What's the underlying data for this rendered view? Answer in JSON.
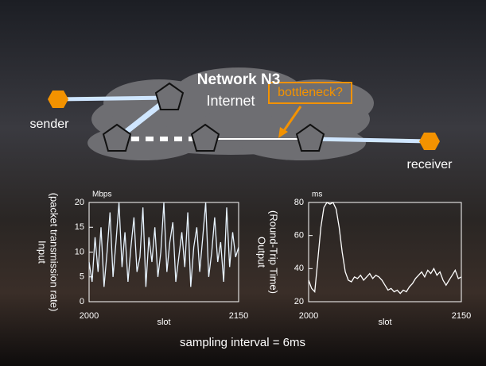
{
  "slide": {
    "title": "Network N3",
    "cloud_label": "Internet",
    "annotation": "bottleneck?",
    "sender": "sender",
    "receiver": "receiver",
    "caption": "sampling interval = 6ms"
  },
  "chart_data": [
    {
      "type": "line",
      "ylabel": [
        "Input",
        "(packet transmission rate)"
      ],
      "unit": "Mbps",
      "xlabel": "slot",
      "xlim": [
        2000,
        2150
      ],
      "xticks": [
        2000,
        2150
      ],
      "ylim": [
        0,
        20
      ],
      "yticks": [
        0,
        5,
        10,
        15,
        20
      ],
      "color": "#e8f4ff",
      "x": [
        2000,
        2003,
        2006,
        2009,
        2012,
        2015,
        2018,
        2021,
        2024,
        2027,
        2030,
        2033,
        2036,
        2039,
        2042,
        2045,
        2048,
        2051,
        2054,
        2057,
        2060,
        2063,
        2066,
        2069,
        2072,
        2075,
        2078,
        2081,
        2084,
        2087,
        2090,
        2093,
        2096,
        2099,
        2102,
        2105,
        2108,
        2111,
        2114,
        2117,
        2120,
        2123,
        2126,
        2129,
        2132,
        2135,
        2138,
        2141,
        2144,
        2147,
        2150
      ],
      "values": [
        8,
        4,
        13,
        6,
        15,
        3,
        10,
        18,
        5,
        12,
        20,
        7,
        14,
        4,
        11,
        17,
        6,
        9,
        19,
        3,
        13,
        8,
        15,
        5,
        10,
        20,
        6,
        12,
        16,
        4,
        9,
        14,
        7,
        18,
        3,
        11,
        15,
        6,
        13,
        20,
        5,
        10,
        17,
        8,
        12,
        4,
        19,
        7,
        14,
        9,
        11
      ]
    },
    {
      "type": "line",
      "ylabel": [
        "Output",
        "(Round-Trip Time)"
      ],
      "unit": "ms",
      "xlabel": "slot",
      "xlim": [
        2000,
        2150
      ],
      "xticks": [
        2000,
        2150
      ],
      "ylim": [
        20,
        80
      ],
      "yticks": [
        20,
        40,
        60,
        80
      ],
      "color": "#ffffff",
      "x": [
        2000,
        2003,
        2006,
        2009,
        2012,
        2015,
        2018,
        2021,
        2024,
        2027,
        2030,
        2033,
        2036,
        2039,
        2042,
        2045,
        2048,
        2051,
        2054,
        2057,
        2060,
        2063,
        2066,
        2069,
        2072,
        2075,
        2078,
        2081,
        2084,
        2087,
        2090,
        2093,
        2096,
        2099,
        2102,
        2105,
        2108,
        2111,
        2114,
        2117,
        2120,
        2123,
        2126,
        2129,
        2132,
        2135,
        2138,
        2141,
        2144,
        2147,
        2150
      ],
      "values": [
        33,
        28,
        26,
        45,
        65,
        77,
        80,
        79,
        80,
        76,
        65,
        50,
        38,
        33,
        32,
        35,
        34,
        36,
        33,
        35,
        37,
        34,
        36,
        35,
        33,
        30,
        27,
        28,
        26,
        27,
        25,
        27,
        26,
        29,
        31,
        34,
        36,
        38,
        35,
        39,
        37,
        40,
        36,
        38,
        33,
        30,
        33,
        36,
        39,
        34,
        35
      ]
    }
  ]
}
